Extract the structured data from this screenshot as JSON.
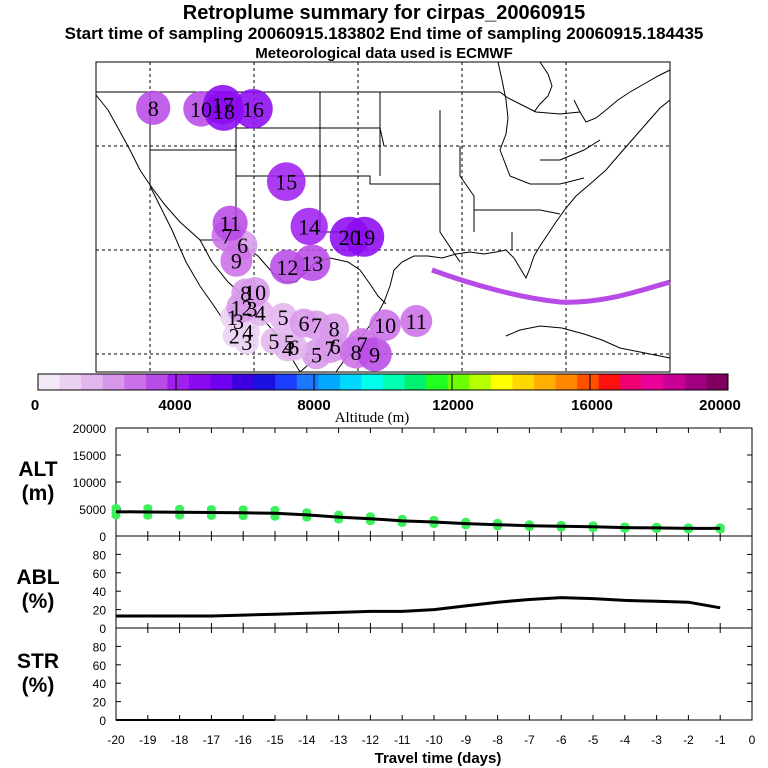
{
  "header": {
    "title": "Retroplume summary for cirpas_20060915",
    "sampling": "Start time of sampling 20060915.183802     End time of sampling 20060915.184435",
    "met": "Meteorological data used is ECMWF"
  },
  "colorbar": {
    "labels": [
      "0",
      "4000",
      "8000",
      "12000",
      "16000",
      "20000"
    ],
    "title": "Altitude (m)",
    "colors": [
      "#f3e8f8",
      "#ecd2f2",
      "#e2b6ee",
      "#d898ea",
      "#cc70e8",
      "#b84ae6",
      "#a020f0",
      "#8c0af0",
      "#7000f0",
      "#3c00e0",
      "#1c10e0",
      "#1c3cff",
      "#1c78ff",
      "#00a8ff",
      "#00d8ff",
      "#00ffec",
      "#00ffb0",
      "#00f070",
      "#20ff20",
      "#6cff00",
      "#b8ff00",
      "#ffff00",
      "#ffd800",
      "#ffb000",
      "#ff8800",
      "#ff5000",
      "#ff1010",
      "#f00070",
      "#e80098",
      "#c80098",
      "#a00080",
      "#800060"
    ]
  },
  "chart_data": [
    {
      "type": "map",
      "title": "Retroplume summary for cirpas_20060915",
      "series": [
        {
          "name": "plume_centroids",
          "points": [
            {
              "label": "1",
              "lon": -97.3,
              "lat": 27.4,
              "alt": 900
            },
            {
              "label": "2",
              "lon": -97.1,
              "lat": 25.6,
              "alt": 800
            },
            {
              "label": "3",
              "lon": -96.7,
              "lat": 27.0,
              "alt": 900
            },
            {
              "label": "3",
              "lon": -95.9,
              "lat": 25.0,
              "alt": 1100
            },
            {
              "label": "3",
              "lon": -95.4,
              "lat": 28.2,
              "alt": 1300
            },
            {
              "label": "4",
              "lon": -95.8,
              "lat": 26.0,
              "alt": 1000
            },
            {
              "label": "4",
              "lon": -94.6,
              "lat": 27.8,
              "alt": 1500
            },
            {
              "label": "4",
              "lon": -92.0,
              "lat": 24.4,
              "alt": 1500
            },
            {
              "label": "5",
              "lon": -93.3,
              "lat": 25.1,
              "alt": 1400
            },
            {
              "label": "5",
              "lon": -91.8,
              "lat": 25.0,
              "alt": 1500
            },
            {
              "label": "5",
              "lon": -92.4,
              "lat": 27.4,
              "alt": 1800
            },
            {
              "label": "5",
              "lon": -89.2,
              "lat": 23.8,
              "alt": 2200
            },
            {
              "label": "6",
              "lon": -96.3,
              "lat": 34.3,
              "alt": 2200
            },
            {
              "label": "6",
              "lon": -91.4,
              "lat": 24.5,
              "alt": 1700
            },
            {
              "label": "6",
              "lon": -90.4,
              "lat": 26.8,
              "alt": 2000
            },
            {
              "label": "6",
              "lon": -87.4,
              "lat": 24.6,
              "alt": 2200
            },
            {
              "label": "7",
              "lon": -97.8,
              "lat": 35.2,
              "alt": 2500
            },
            {
              "label": "7",
              "lon": -89.2,
              "lat": 26.6,
              "alt": 2100
            },
            {
              "label": "7",
              "lon": -87.9,
              "lat": 24.4,
              "alt": 2300
            },
            {
              "label": "7",
              "lon": -84.8,
              "lat": 24.8,
              "alt": 2600
            },
            {
              "label": "8",
              "lon": -104.9,
              "lat": 47.5,
              "alt": 3200
            },
            {
              "label": "8",
              "lon": -96.0,
              "lat": 29.7,
              "alt": 2000
            },
            {
              "label": "8",
              "lon": -87.5,
              "lat": 26.3,
              "alt": 2200
            },
            {
              "label": "8",
              "lon": -85.4,
              "lat": 24.0,
              "alt": 2800
            },
            {
              "label": "9",
              "lon": -96.9,
              "lat": 32.8,
              "alt": 2700
            },
            {
              "label": "9",
              "lon": -83.6,
              "lat": 23.8,
              "alt": 3200
            },
            {
              "label": "10",
              "lon": -100.3,
              "lat": 47.4,
              "alt": 3500
            },
            {
              "label": "10",
              "lon": -95.1,
              "lat": 29.8,
              "alt": 2200
            },
            {
              "label": "10",
              "lon": -82.6,
              "lat": 26.6,
              "alt": 2600
            },
            {
              "label": "11",
              "lon": -97.5,
              "lat": 36.4,
              "alt": 3400
            },
            {
              "label": "11",
              "lon": -79.6,
              "lat": 27.0,
              "alt": 2700
            },
            {
              "label": "12",
              "lon": -92.0,
              "lat": 32.2,
              "alt": 3300
            },
            {
              "label": "12",
              "lon": -96.4,
              "lat": 28.3,
              "alt": 2400
            },
            {
              "label": "13",
              "lon": -89.6,
              "lat": 32.6,
              "alt": 3700
            },
            {
              "label": "14",
              "lon": -89.9,
              "lat": 36.1,
              "alt": 3900
            },
            {
              "label": "15",
              "lon": -92.1,
              "lat": 40.4,
              "alt": 4200
            },
            {
              "label": "16",
              "lon": -95.3,
              "lat": 47.4,
              "alt": 4400
            },
            {
              "label": "17",
              "lon": -98.2,
              "lat": 47.8,
              "alt": 4400
            },
            {
              "label": "18",
              "lon": -98.1,
              "lat": 47.2,
              "alt": 4500
            },
            {
              "label": "19",
              "lon": -84.6,
              "lat": 35.1,
              "alt": 4600
            },
            {
              "label": "20",
              "lon": -86.0,
              "lat": 35.1,
              "alt": 4700
            }
          ]
        }
      ]
    },
    {
      "type": "line",
      "name": "ALT",
      "ylabel": "ALT (m)",
      "ylim": [
        0,
        20000
      ],
      "yticks": [
        0,
        5000,
        10000,
        15000,
        20000
      ],
      "x": [
        -20,
        -19,
        -18,
        -17,
        -16,
        -15,
        -14,
        -13,
        -12,
        -11,
        -10,
        -9,
        -8,
        -7,
        -6,
        -5,
        -4,
        -3,
        -2,
        -1
      ],
      "series": [
        {
          "name": "median_altitude",
          "values": [
            4500,
            4450,
            4400,
            4350,
            4300,
            4200,
            3900,
            3500,
            3200,
            2800,
            2600,
            2300,
            2100,
            1900,
            1800,
            1700,
            1550,
            1500,
            1400,
            1400
          ]
        },
        {
          "name": "altitude_samples_spread",
          "values": [
            1300,
            1300,
            1200,
            1200,
            1200,
            1200,
            1000,
            900,
            900,
            800,
            800,
            700,
            700,
            600,
            600,
            600,
            500,
            500,
            500,
            500
          ]
        }
      ]
    },
    {
      "type": "line",
      "name": "ABL",
      "ylabel": "ABL (%)",
      "ylim": [
        0,
        100
      ],
      "yticks": [
        0,
        20,
        40,
        60,
        80
      ],
      "x": [
        -20,
        -19,
        -18,
        -17,
        -16,
        -15,
        -14,
        -13,
        -12,
        -11,
        -10,
        -9,
        -8,
        -7,
        -6,
        -5,
        -4,
        -3,
        -2,
        -1
      ],
      "series": [
        {
          "name": "abl_fraction",
          "values": [
            13,
            13,
            13,
            13,
            14,
            15,
            16,
            17,
            18,
            18,
            20,
            24,
            28,
            31,
            33,
            32,
            30,
            29,
            28,
            22
          ]
        }
      ]
    },
    {
      "type": "line",
      "name": "STR",
      "ylabel": "STR (%)",
      "ylim": [
        0,
        100
      ],
      "yticks": [
        0,
        20,
        40,
        60,
        80
      ],
      "x": [
        -20,
        -19,
        -18,
        -17,
        -16,
        -15
      ],
      "series": [
        {
          "name": "str_fraction",
          "values": [
            0,
            0,
            0,
            0,
            0,
            0
          ]
        }
      ]
    }
  ],
  "xaxis": {
    "ticks": [
      "-20",
      "-19",
      "-18",
      "-17",
      "-16",
      "-15",
      "-14",
      "-13",
      "-12",
      "-11",
      "-10",
      "-9",
      "-8",
      "-7",
      "-6",
      "-5",
      "-4",
      "-3",
      "-2",
      "-1",
      "0"
    ],
    "label": "Travel time (days)"
  },
  "panels": {
    "alt": {
      "name": "ALT",
      "unit": "(m)"
    },
    "abl": {
      "name": "ABL",
      "unit": "(%)"
    },
    "str": {
      "name": "STR",
      "unit": "(%)"
    }
  }
}
